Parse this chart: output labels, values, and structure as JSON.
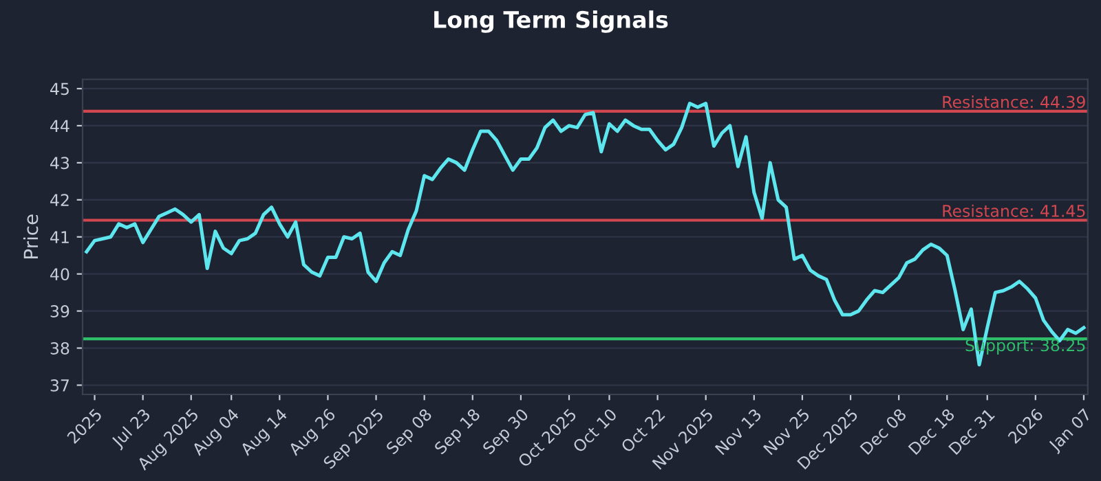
{
  "chart_data": {
    "type": "line",
    "title": "Long Term Signals",
    "ylabel": "Price",
    "categories": [
      null,
      "2025",
      null,
      null,
      null,
      null,
      null,
      "Jul 23",
      null,
      null,
      null,
      null,
      null,
      "Aug 2025",
      null,
      null,
      null,
      null,
      "Aug 04",
      null,
      null,
      null,
      null,
      null,
      "Aug 14",
      null,
      null,
      null,
      null,
      null,
      "Aug 26",
      null,
      null,
      null,
      null,
      null,
      "Sep 2025",
      null,
      null,
      null,
      null,
      null,
      "Sep 08",
      null,
      null,
      null,
      null,
      null,
      "Sep 18",
      null,
      null,
      null,
      null,
      null,
      "Sep 30",
      null,
      null,
      null,
      null,
      null,
      "Oct 2025",
      null,
      null,
      null,
      null,
      "Oct 10",
      null,
      null,
      null,
      null,
      null,
      "Oct 22",
      null,
      null,
      null,
      null,
      null,
      "Nov 2025",
      null,
      null,
      null,
      null,
      null,
      "Nov 13",
      null,
      null,
      null,
      null,
      null,
      "Nov 25",
      null,
      null,
      null,
      null,
      null,
      "Dec 2025",
      null,
      null,
      null,
      null,
      null,
      "Dec 08",
      null,
      null,
      null,
      null,
      null,
      "Dec 18",
      null,
      null,
      null,
      null,
      "Dec 31",
      null,
      null,
      null,
      null,
      null,
      "2026",
      null,
      null,
      null,
      null,
      null,
      "Jan 07"
    ],
    "series": [
      {
        "color": "#5ee6ee",
        "values": [
          40.6,
          40.9,
          40.95,
          41.0,
          41.35,
          41.25,
          41.35,
          40.85,
          41.2,
          41.55,
          41.65,
          41.75,
          41.6,
          41.4,
          41.6,
          40.15,
          41.15,
          40.7,
          40.55,
          40.9,
          40.95,
          41.1,
          41.6,
          41.8,
          41.35,
          41.0,
          41.4,
          40.25,
          40.05,
          39.95,
          40.45,
          40.45,
          41.0,
          40.95,
          41.1,
          40.05,
          39.8,
          40.3,
          40.6,
          40.5,
          41.2,
          41.7,
          42.65,
          42.55,
          42.85,
          43.1,
          43.0,
          42.8,
          43.35,
          43.85,
          43.85,
          43.6,
          43.2,
          42.8,
          43.1,
          43.1,
          43.4,
          43.95,
          44.15,
          43.85,
          44.0,
          43.95,
          44.3,
          44.35,
          43.3,
          44.05,
          43.85,
          44.15,
          44.0,
          43.9,
          43.9,
          43.6,
          43.35,
          43.5,
          43.95,
          44.6,
          44.5,
          44.6,
          43.45,
          43.8,
          44.0,
          42.9,
          43.7,
          42.2,
          41.5,
          43.0,
          42.0,
          41.8,
          40.4,
          40.5,
          40.1,
          39.95,
          39.85,
          39.3,
          38.9,
          38.9,
          39.0,
          39.3,
          39.55,
          39.5,
          39.7,
          39.9,
          40.3,
          40.4,
          40.65,
          40.8,
          40.7,
          40.5,
          39.55,
          38.5,
          39.05,
          37.55,
          38.55,
          39.5,
          39.55,
          39.65,
          39.8,
          39.6,
          39.35,
          38.75,
          38.45,
          38.2,
          38.5,
          38.4,
          38.55
        ]
      }
    ],
    "ylim": [
      36.75,
      45.25
    ],
    "yticks": [
      37,
      38,
      39,
      40,
      41,
      42,
      43,
      44,
      45
    ],
    "grid": "y",
    "line_style": "solid",
    "ref_lines": [
      {
        "axis": "y",
        "value": 44.39,
        "label": "Resistance: 44.39",
        "color": "#d2474f"
      },
      {
        "axis": "y",
        "value": 41.45,
        "label": "Resistance: 41.45",
        "color": "#d2474f"
      },
      {
        "axis": "y",
        "value": 38.25,
        "label": "Support: 38.25",
        "color": "#2fbf6a"
      }
    ]
  }
}
